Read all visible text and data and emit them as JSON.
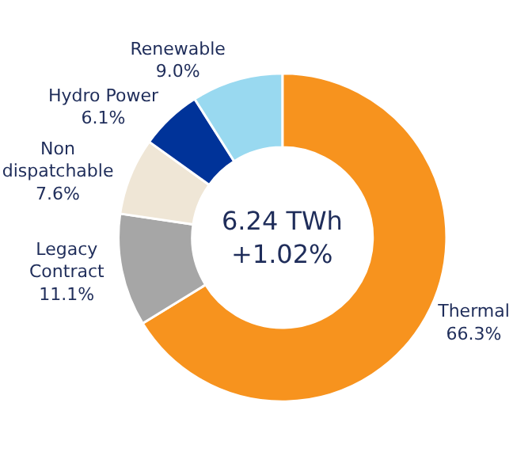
{
  "chart_data": {
    "type": "donut",
    "categories": [
      "Thermal",
      "Legacy Contract",
      "Non dispatchable",
      "Hydro Power",
      "Renewable"
    ],
    "values": [
      66.3,
      11.1,
      7.6,
      6.1,
      9.0
    ],
    "value_labels": [
      "66.3%",
      "11.1%",
      "7.6%",
      "6.1%",
      "9.0%"
    ],
    "colors": [
      "#f7931e",
      "#a6a6a6",
      "#efe6d6",
      "#003399",
      "#99d9f0"
    ],
    "annotations": [
      "6.24 TWh",
      "+1.02%"
    ],
    "legend": false
  }
}
